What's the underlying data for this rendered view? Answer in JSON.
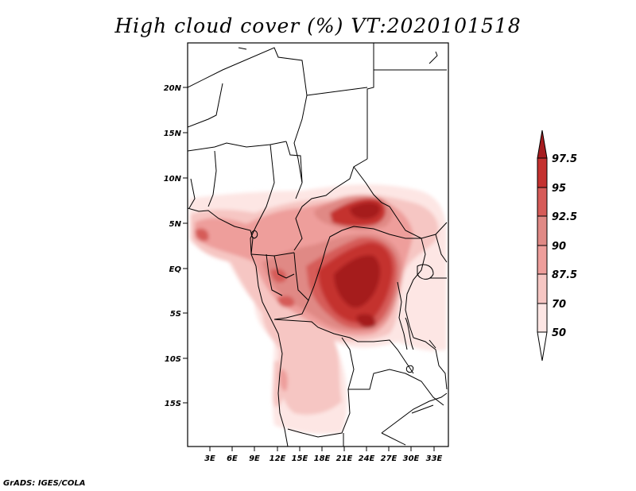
{
  "title": "High cloud cover (%) VT:2020101518",
  "credit": "GrADS: IGES/COLA",
  "lat_labels": [
    "20N",
    "15N",
    "10N",
    "5N",
    "EQ",
    "5S",
    "10S",
    "15S"
  ],
  "lon_labels": [
    "3E",
    "6E",
    "9E",
    "12E",
    "15E",
    "18E",
    "21E",
    "24E",
    "27E",
    "30E",
    "33E"
  ],
  "colorbar": {
    "labels": [
      "97.5",
      "95",
      "92.5",
      "90",
      "87.5",
      "70",
      "50"
    ],
    "colors": [
      "#a51c1f",
      "#c4312f",
      "#d65b58",
      "#e08985",
      "#ee9e9b",
      "#f6c6c3",
      "#fde6e4",
      "#ffffff"
    ]
  },
  "field": {
    "variable": "High cloud cover",
    "units": "%",
    "valid_time": "2020101518"
  }
}
